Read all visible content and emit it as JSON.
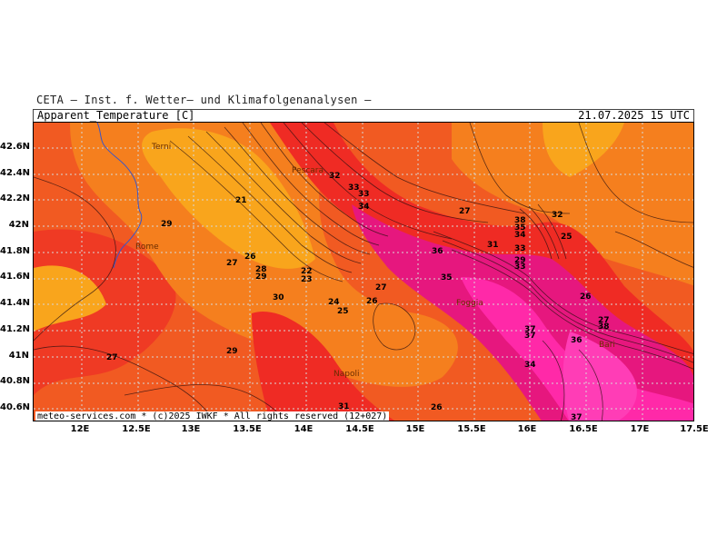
{
  "header": {
    "line1": "CETA — Inst. f. Wetter— und Klimafolgenanalysen —",
    "variable": "Apparent_Temperature [C]",
    "datetime": "21.07.2025 15 UTC"
  },
  "footer": {
    "credit": "meteo-services.com * (c)2025 IWKF * All rights reserved (12+027)"
  },
  "map": {
    "y_labels": [
      "42.6N",
      "42.4N",
      "42.2N",
      "42N",
      "41.8N",
      "41.6N",
      "41.4N",
      "41.2N",
      "41N",
      "40.8N",
      "40.6N"
    ],
    "x_labels": [
      "12E",
      "12.5E",
      "13E",
      "13.5E",
      "14E",
      "14.5E",
      "15E",
      "15.5E",
      "16E",
      "16.5E",
      "17E",
      "17.5E"
    ],
    "cities": [
      "Terni",
      "Pescara",
      "Rome",
      "Foggia",
      "Napoli",
      "Bari"
    ],
    "contour_values": [
      "21",
      "29",
      "27",
      "26",
      "28",
      "29",
      "22",
      "23",
      "30",
      "24",
      "25",
      "26",
      "27",
      "32",
      "33",
      "33",
      "34",
      "27",
      "36",
      "35",
      "31",
      "38",
      "35",
      "34",
      "33",
      "32",
      "25",
      "26",
      "27",
      "29",
      "33",
      "37",
      "36",
      "38",
      "37",
      "34",
      "29",
      "27",
      "31",
      "26",
      "37"
    ],
    "colors": {
      "orange_light": "#f9a51c",
      "orange": "#f57f1e",
      "orange_red": "#f15a22",
      "red": "#ef2b24",
      "crimson": "#e61e3c",
      "magenta": "#e6177e",
      "pink": "#ff29a8"
    }
  }
}
